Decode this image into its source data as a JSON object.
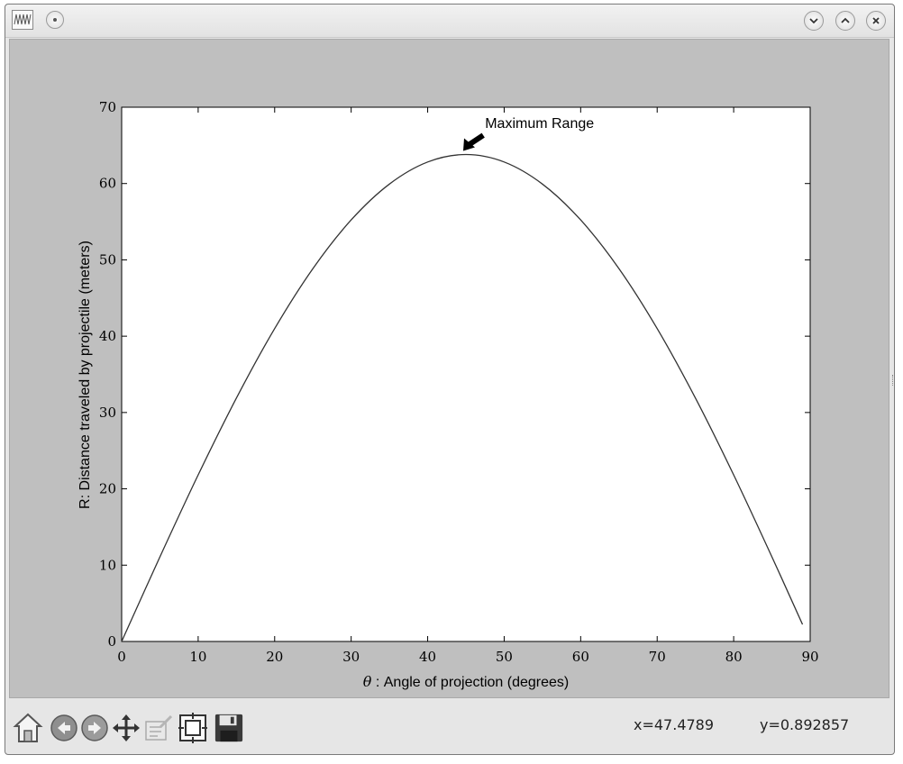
{
  "window": {
    "title": "",
    "icons": {
      "app": "waveform-icon",
      "menu": "window-menu-icon",
      "minimize": "chevron-down-icon",
      "maximize": "chevron-up-icon",
      "close": "close-icon"
    }
  },
  "chart_data": {
    "type": "line",
    "title": "",
    "xlabel_symbol": "θ",
    "xlabel": " : Angle of projection (degrees)",
    "ylabel": "R: Distance traveled by projectile (meters)",
    "xlim": [
      0,
      90
    ],
    "ylim": [
      0,
      70
    ],
    "xticks": [
      0,
      10,
      20,
      30,
      40,
      50,
      60,
      70,
      80,
      90
    ],
    "yticks": [
      0,
      10,
      20,
      30,
      40,
      50,
      60,
      70
    ],
    "grid": false,
    "line_color": "#333333",
    "series": [
      {
        "x": [
          0,
          5,
          10,
          15,
          20,
          25,
          30,
          35,
          40,
          45,
          50,
          55,
          60,
          65,
          70,
          75,
          80,
          85,
          89
        ],
        "values": [
          0,
          11.08,
          21.82,
          31.89,
          41.0,
          48.86,
          55.23,
          59.93,
          62.82,
          63.8,
          62.82,
          59.93,
          55.23,
          48.86,
          41.0,
          31.89,
          21.82,
          11.08,
          2.23
        ]
      }
    ],
    "annotation": {
      "text": "Maximum Range",
      "point": [
        45,
        63.8
      ],
      "text_at": [
        47.5,
        67.5
      ]
    }
  },
  "toolbar": {
    "buttons": [
      {
        "icon": "home-icon",
        "name": "home-button"
      },
      {
        "icon": "back-arrow-icon",
        "name": "back-button"
      },
      {
        "icon": "forward-arrow-icon",
        "name": "forward-button"
      },
      {
        "icon": "pan-icon",
        "name": "pan-button"
      },
      {
        "icon": "zoom-icon",
        "name": "zoom-button"
      },
      {
        "icon": "subplots-icon",
        "name": "configure-subplots-button"
      },
      {
        "icon": "save-icon",
        "name": "save-button"
      }
    ],
    "x_readout": "x=47.4789",
    "y_readout": "y=0.892857"
  }
}
